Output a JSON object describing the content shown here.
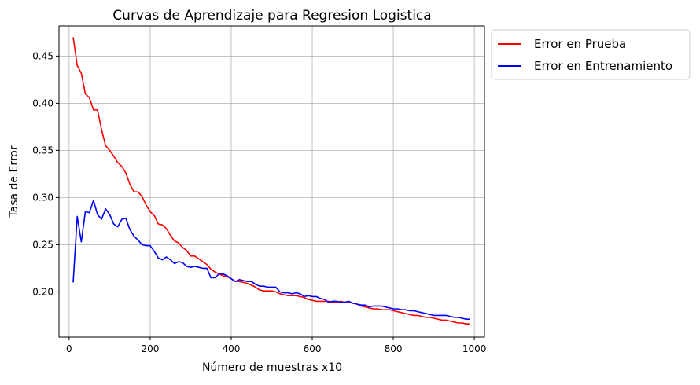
{
  "chart_data": {
    "type": "line",
    "title": "Curvas de Aprendizaje para Regresion Logistica",
    "xlabel": "Número de muestras x10",
    "ylabel": "Tasa de Error",
    "xlim": [
      -25,
      1025
    ],
    "ylim": [
      0.152,
      0.482
    ],
    "xticks": [
      0,
      200,
      400,
      600,
      800,
      1000
    ],
    "yticks": [
      0.2,
      0.25,
      0.3,
      0.35,
      0.4,
      0.45
    ],
    "grid": true,
    "legend_position": "outside-top-right",
    "series": [
      {
        "name": "Error en Prueba",
        "color": "#ff0000",
        "x": [
          10,
          20,
          30,
          40,
          50,
          60,
          70,
          80,
          90,
          100,
          110,
          120,
          130,
          140,
          150,
          160,
          170,
          180,
          190,
          200,
          210,
          220,
          230,
          240,
          250,
          260,
          270,
          280,
          290,
          300,
          310,
          320,
          330,
          340,
          350,
          360,
          370,
          380,
          390,
          400,
          410,
          420,
          430,
          440,
          450,
          460,
          470,
          480,
          490,
          500,
          510,
          520,
          530,
          540,
          550,
          560,
          570,
          580,
          590,
          600,
          610,
          620,
          630,
          640,
          650,
          660,
          670,
          680,
          690,
          700,
          710,
          720,
          730,
          740,
          750,
          760,
          770,
          780,
          790,
          800,
          810,
          820,
          830,
          840,
          850,
          860,
          870,
          880,
          890,
          900,
          910,
          920,
          930,
          940,
          950,
          960,
          970,
          980,
          990
        ],
        "values": [
          0.47,
          0.44,
          0.432,
          0.41,
          0.406,
          0.393,
          0.393,
          0.372,
          0.355,
          0.35,
          0.344,
          0.337,
          0.333,
          0.326,
          0.314,
          0.306,
          0.306,
          0.301,
          0.292,
          0.285,
          0.281,
          0.272,
          0.271,
          0.267,
          0.26,
          0.254,
          0.252,
          0.247,
          0.244,
          0.238,
          0.238,
          0.235,
          0.232,
          0.229,
          0.224,
          0.221,
          0.219,
          0.217,
          0.216,
          0.214,
          0.211,
          0.211,
          0.21,
          0.209,
          0.207,
          0.205,
          0.202,
          0.201,
          0.201,
          0.201,
          0.2,
          0.198,
          0.197,
          0.196,
          0.196,
          0.196,
          0.195,
          0.194,
          0.192,
          0.191,
          0.19,
          0.19,
          0.19,
          0.19,
          0.189,
          0.189,
          0.19,
          0.189,
          0.189,
          0.188,
          0.187,
          0.185,
          0.184,
          0.183,
          0.182,
          0.182,
          0.181,
          0.181,
          0.181,
          0.18,
          0.179,
          0.178,
          0.177,
          0.176,
          0.175,
          0.175,
          0.174,
          0.173,
          0.173,
          0.172,
          0.171,
          0.17,
          0.17,
          0.169,
          0.168,
          0.167,
          0.167,
          0.166,
          0.166
        ]
      },
      {
        "name": "Error en Entrenamiento",
        "color": "#0000ff",
        "x": [
          10,
          20,
          30,
          40,
          50,
          60,
          70,
          80,
          90,
          100,
          110,
          120,
          130,
          140,
          150,
          160,
          170,
          180,
          190,
          200,
          210,
          220,
          230,
          240,
          250,
          260,
          270,
          280,
          290,
          300,
          310,
          320,
          330,
          340,
          350,
          360,
          370,
          380,
          390,
          400,
          410,
          420,
          430,
          440,
          450,
          460,
          470,
          480,
          490,
          500,
          510,
          520,
          530,
          540,
          550,
          560,
          570,
          580,
          590,
          600,
          610,
          620,
          630,
          640,
          650,
          660,
          670,
          680,
          690,
          700,
          710,
          720,
          730,
          740,
          750,
          760,
          770,
          780,
          790,
          800,
          810,
          820,
          830,
          840,
          850,
          860,
          870,
          880,
          890,
          900,
          910,
          920,
          930,
          940,
          950,
          960,
          970,
          980,
          990
        ],
        "values": [
          0.21,
          0.28,
          0.253,
          0.285,
          0.284,
          0.297,
          0.282,
          0.277,
          0.288,
          0.282,
          0.272,
          0.269,
          0.277,
          0.278,
          0.266,
          0.259,
          0.255,
          0.25,
          0.249,
          0.249,
          0.243,
          0.236,
          0.234,
          0.237,
          0.234,
          0.23,
          0.232,
          0.231,
          0.227,
          0.226,
          0.227,
          0.226,
          0.225,
          0.225,
          0.215,
          0.215,
          0.219,
          0.219,
          0.217,
          0.214,
          0.211,
          0.213,
          0.212,
          0.211,
          0.211,
          0.208,
          0.206,
          0.206,
          0.205,
          0.205,
          0.205,
          0.2,
          0.199,
          0.199,
          0.198,
          0.199,
          0.198,
          0.195,
          0.196,
          0.195,
          0.195,
          0.193,
          0.192,
          0.189,
          0.19,
          0.19,
          0.189,
          0.189,
          0.19,
          0.188,
          0.187,
          0.186,
          0.186,
          0.184,
          0.185,
          0.185,
          0.185,
          0.184,
          0.183,
          0.182,
          0.182,
          0.181,
          0.181,
          0.18,
          0.18,
          0.179,
          0.178,
          0.177,
          0.176,
          0.175,
          0.175,
          0.175,
          0.175,
          0.174,
          0.173,
          0.173,
          0.172,
          0.171,
          0.171
        ]
      }
    ]
  }
}
